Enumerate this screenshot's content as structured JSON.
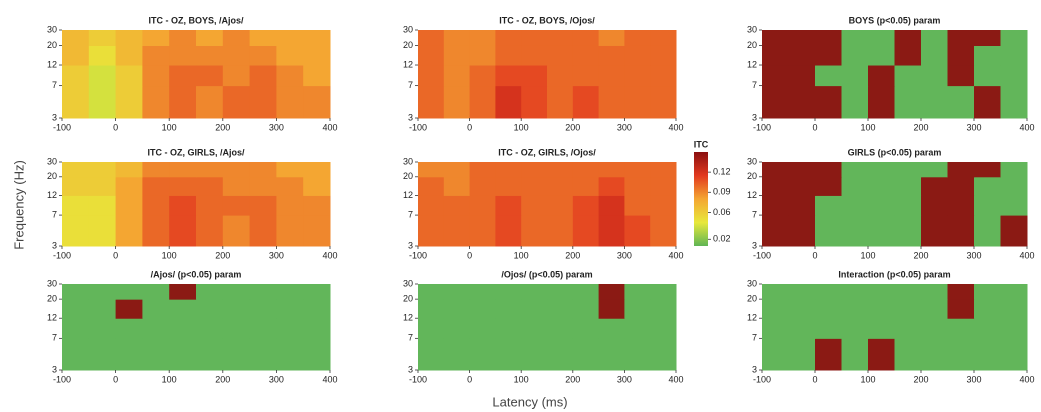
{
  "figure": {
    "ylabel": "Frequency (Hz)",
    "xlabel": "Latency (ms)",
    "colorbar": {
      "label": "ITC",
      "zlim": [
        0.01,
        0.15
      ],
      "ticks": [
        0.02,
        0.06,
        0.09,
        0.12
      ],
      "colors": [
        "#5fb554",
        "#e8e83a",
        "#f4a632",
        "#e2391f",
        "#8a0f10"
      ]
    }
  },
  "chart_data": [
    {
      "type": "heatmap",
      "title": "ITC - OZ, BOYS, /Ajos/",
      "xlim": [
        -100,
        400
      ],
      "ylim": [
        3,
        30
      ],
      "log_y": true,
      "xticks": [
        -100,
        0,
        100,
        200,
        300,
        400
      ],
      "yticks": [
        3,
        7,
        12,
        20,
        30
      ],
      "xbins": [
        -100,
        -50,
        0,
        50,
        100,
        150,
        200,
        250,
        300,
        350,
        400
      ],
      "ybins": [
        3,
        7,
        12,
        20,
        30
      ],
      "z": [
        [
          0.06,
          0.04,
          0.06,
          0.09,
          0.1,
          0.09,
          0.1,
          0.1,
          0.09,
          0.09
        ],
        [
          0.06,
          0.04,
          0.06,
          0.09,
          0.1,
          0.1,
          0.09,
          0.1,
          0.09,
          0.08
        ],
        [
          0.07,
          0.05,
          0.07,
          0.09,
          0.09,
          0.09,
          0.09,
          0.09,
          0.08,
          0.08
        ],
        [
          0.07,
          0.06,
          0.07,
          0.08,
          0.09,
          0.08,
          0.09,
          0.08,
          0.08,
          0.08
        ]
      ]
    },
    {
      "type": "heatmap",
      "title": "ITC - OZ, BOYS, /Ojos/",
      "xlim": [
        -100,
        400
      ],
      "ylim": [
        3,
        30
      ],
      "log_y": true,
      "xticks": [
        -100,
        0,
        100,
        200,
        300,
        400
      ],
      "yticks": [
        3,
        7,
        12,
        20,
        30
      ],
      "xbins": [
        -100,
        -50,
        0,
        50,
        100,
        150,
        200,
        250,
        300,
        350,
        400
      ],
      "ybins": [
        3,
        7,
        12,
        20,
        30
      ],
      "z": [
        [
          0.1,
          0.09,
          0.1,
          0.12,
          0.11,
          0.1,
          0.11,
          0.1,
          0.1,
          0.1
        ],
        [
          0.1,
          0.09,
          0.1,
          0.11,
          0.11,
          0.1,
          0.1,
          0.1,
          0.1,
          0.1
        ],
        [
          0.1,
          0.09,
          0.09,
          0.1,
          0.1,
          0.1,
          0.1,
          0.1,
          0.1,
          0.1
        ],
        [
          0.1,
          0.09,
          0.09,
          0.1,
          0.1,
          0.1,
          0.1,
          0.09,
          0.1,
          0.1
        ]
      ]
    },
    {
      "type": "heatmap",
      "title": "BOYS (p<0.05) param",
      "xlim": [
        -100,
        400
      ],
      "ylim": [
        3,
        30
      ],
      "log_y": true,
      "xticks": [
        -100,
        0,
        100,
        200,
        300,
        400
      ],
      "yticks": [
        3,
        7,
        12,
        20,
        30
      ],
      "xbins": [
        -100,
        -50,
        0,
        50,
        100,
        150,
        200,
        250,
        300,
        350,
        400
      ],
      "ybins": [
        3,
        7,
        12,
        20,
        30
      ],
      "colors": [
        "#62b65a",
        "#8b1a14"
      ],
      "z": [
        [
          1,
          1,
          1,
          0,
          1,
          0,
          0,
          0,
          1,
          0
        ],
        [
          1,
          1,
          0,
          0,
          1,
          0,
          0,
          1,
          0,
          0
        ],
        [
          1,
          1,
          1,
          0,
          0,
          1,
          0,
          1,
          0,
          0
        ],
        [
          1,
          1,
          1,
          0,
          0,
          1,
          0,
          1,
          1,
          0
        ]
      ]
    },
    {
      "type": "heatmap",
      "title": "ITC - OZ, GIRLS, /Ajos/",
      "xlim": [
        -100,
        400
      ],
      "ylim": [
        3,
        30
      ],
      "log_y": true,
      "xticks": [
        -100,
        0,
        100,
        200,
        300,
        400
      ],
      "yticks": [
        3,
        7,
        12,
        20,
        30
      ],
      "xbins": [
        -100,
        -50,
        0,
        50,
        100,
        150,
        200,
        250,
        300,
        350,
        400
      ],
      "ybins": [
        3,
        7,
        12,
        20,
        30
      ],
      "z": [
        [
          0.05,
          0.05,
          0.08,
          0.1,
          0.11,
          0.1,
          0.09,
          0.1,
          0.09,
          0.09
        ],
        [
          0.05,
          0.05,
          0.08,
          0.1,
          0.11,
          0.1,
          0.1,
          0.1,
          0.09,
          0.09
        ],
        [
          0.06,
          0.06,
          0.08,
          0.1,
          0.1,
          0.1,
          0.09,
          0.09,
          0.09,
          0.08
        ],
        [
          0.06,
          0.06,
          0.07,
          0.09,
          0.09,
          0.09,
          0.09,
          0.09,
          0.08,
          0.08
        ]
      ]
    },
    {
      "type": "heatmap",
      "title": "ITC - OZ, GIRLS, /Ojos/",
      "xlim": [
        -100,
        400
      ],
      "ylim": [
        3,
        30
      ],
      "log_y": true,
      "xticks": [
        -100,
        0,
        100,
        200,
        300,
        400
      ],
      "yticks": [
        3,
        7,
        12,
        20,
        30
      ],
      "xbins": [
        -100,
        -50,
        0,
        50,
        100,
        150,
        200,
        250,
        300,
        350,
        400
      ],
      "ybins": [
        3,
        7,
        12,
        20,
        30
      ],
      "z": [
        [
          0.1,
          0.1,
          0.1,
          0.11,
          0.1,
          0.1,
          0.11,
          0.12,
          0.11,
          0.1
        ],
        [
          0.1,
          0.1,
          0.1,
          0.11,
          0.1,
          0.1,
          0.11,
          0.12,
          0.1,
          0.1
        ],
        [
          0.1,
          0.09,
          0.1,
          0.1,
          0.1,
          0.1,
          0.1,
          0.11,
          0.1,
          0.1
        ],
        [
          0.09,
          0.09,
          0.1,
          0.1,
          0.1,
          0.1,
          0.1,
          0.1,
          0.1,
          0.1
        ]
      ]
    },
    {
      "type": "heatmap",
      "title": "GIRLS (p<0.05) param",
      "xlim": [
        -100,
        400
      ],
      "ylim": [
        3,
        30
      ],
      "log_y": true,
      "xticks": [
        -100,
        0,
        100,
        200,
        300,
        400
      ],
      "yticks": [
        3,
        7,
        12,
        20,
        30
      ],
      "xbins": [
        -100,
        -50,
        0,
        50,
        100,
        150,
        200,
        250,
        300,
        350,
        400
      ],
      "ybins": [
        3,
        7,
        12,
        20,
        30
      ],
      "colors": [
        "#62b65a",
        "#8b1a14"
      ],
      "z": [
        [
          1,
          1,
          0,
          0,
          0,
          0,
          1,
          1,
          0,
          1
        ],
        [
          1,
          1,
          0,
          0,
          0,
          0,
          1,
          1,
          0,
          0
        ],
        [
          1,
          1,
          1,
          0,
          0,
          0,
          1,
          1,
          0,
          0
        ],
        [
          1,
          1,
          1,
          0,
          0,
          0,
          0,
          1,
          1,
          0
        ]
      ]
    },
    {
      "type": "heatmap",
      "title": "/Ajos/ (p<0.05) param",
      "xlim": [
        -100,
        400
      ],
      "ylim": [
        3,
        30
      ],
      "log_y": true,
      "xticks": [
        -100,
        0,
        100,
        200,
        300,
        400
      ],
      "yticks": [
        3,
        7,
        12,
        20,
        30
      ],
      "xbins": [
        -100,
        -50,
        0,
        50,
        100,
        150,
        200,
        250,
        300,
        350,
        400
      ],
      "ybins": [
        3,
        7,
        12,
        20,
        30
      ],
      "colors": [
        "#62b65a",
        "#8b1a14"
      ],
      "z": [
        [
          0,
          0,
          0,
          0,
          0,
          0,
          0,
          0,
          0,
          0
        ],
        [
          0,
          0,
          0,
          0,
          0,
          0,
          0,
          0,
          0,
          0
        ],
        [
          0,
          0,
          1,
          0,
          0,
          0,
          0,
          0,
          0,
          0
        ],
        [
          0,
          0,
          0,
          0,
          1,
          0,
          0,
          0,
          0,
          0
        ]
      ]
    },
    {
      "type": "heatmap",
      "title": "/Ojos/ (p<0.05) param",
      "xlim": [
        -100,
        400
      ],
      "ylim": [
        3,
        30
      ],
      "log_y": true,
      "xticks": [
        -100,
        0,
        100,
        200,
        300,
        400
      ],
      "yticks": [
        3,
        7,
        12,
        20,
        30
      ],
      "xbins": [
        -100,
        -50,
        0,
        50,
        100,
        150,
        200,
        250,
        300,
        350,
        400
      ],
      "ybins": [
        3,
        7,
        12,
        20,
        30
      ],
      "colors": [
        "#62b65a",
        "#8b1a14"
      ],
      "z": [
        [
          0,
          0,
          0,
          0,
          0,
          0,
          0,
          0,
          0,
          0
        ],
        [
          0,
          0,
          0,
          0,
          0,
          0,
          0,
          0,
          0,
          0
        ],
        [
          0,
          0,
          0,
          0,
          0,
          0,
          0,
          1,
          0,
          0
        ],
        [
          0,
          0,
          0,
          0,
          0,
          0,
          0,
          1,
          0,
          0
        ]
      ]
    },
    {
      "type": "heatmap",
      "title": "Interaction (p<0.05) param",
      "xlim": [
        -100,
        400
      ],
      "ylim": [
        3,
        30
      ],
      "log_y": true,
      "xticks": [
        -100,
        0,
        100,
        200,
        300,
        400
      ],
      "yticks": [
        3,
        7,
        12,
        20,
        30
      ],
      "xbins": [
        -100,
        -50,
        0,
        50,
        100,
        150,
        200,
        250,
        300,
        350,
        400
      ],
      "ybins": [
        3,
        7,
        12,
        20,
        30
      ],
      "colors": [
        "#62b65a",
        "#8b1a14"
      ],
      "z": [
        [
          0,
          0,
          1,
          0,
          1,
          0,
          0,
          0,
          0,
          0
        ],
        [
          0,
          0,
          0,
          0,
          0,
          0,
          0,
          0,
          0,
          0
        ],
        [
          0,
          0,
          0,
          0,
          0,
          0,
          0,
          1,
          0,
          0
        ],
        [
          0,
          0,
          0,
          0,
          0,
          0,
          0,
          1,
          0,
          0
        ]
      ]
    }
  ]
}
